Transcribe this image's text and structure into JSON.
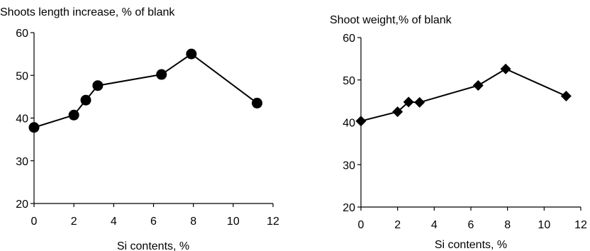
{
  "chart_data": [
    {
      "type": "line",
      "title": "Shoots length increase, % of blank",
      "xlabel": "Si contents, %",
      "ylabel": "",
      "xlim": [
        0,
        12
      ],
      "ylim": [
        20,
        60
      ],
      "xticks": [
        "0",
        "2",
        "4",
        "6",
        "8",
        "10",
        "12"
      ],
      "yticks": [
        "20",
        "30",
        "40",
        "50",
        "60"
      ],
      "grid": false,
      "marker": "circle",
      "series": [
        {
          "x": [
            0,
            2,
            2.6,
            3.2,
            6.4,
            7.9,
            11.2
          ],
          "y": [
            37.8,
            40.7,
            44.2,
            47.6,
            50.2,
            55.0,
            43.5
          ]
        }
      ]
    },
    {
      "type": "line",
      "title": "Shoot weight,% of blank",
      "xlabel": "Si contents, %",
      "ylabel": "",
      "xlim": [
        0,
        12
      ],
      "ylim": [
        20,
        60
      ],
      "xticks": [
        "0",
        "2",
        "4",
        "6",
        "8",
        "10",
        "12"
      ],
      "yticks": [
        "20",
        "30",
        "40",
        "50",
        "60"
      ],
      "grid": false,
      "marker": "diamond",
      "series": [
        {
          "x": [
            0,
            2,
            2.6,
            3.2,
            6.4,
            7.9,
            11.2
          ],
          "y": [
            40.3,
            42.5,
            44.8,
            44.7,
            48.7,
            52.6,
            46.2
          ]
        }
      ]
    }
  ]
}
